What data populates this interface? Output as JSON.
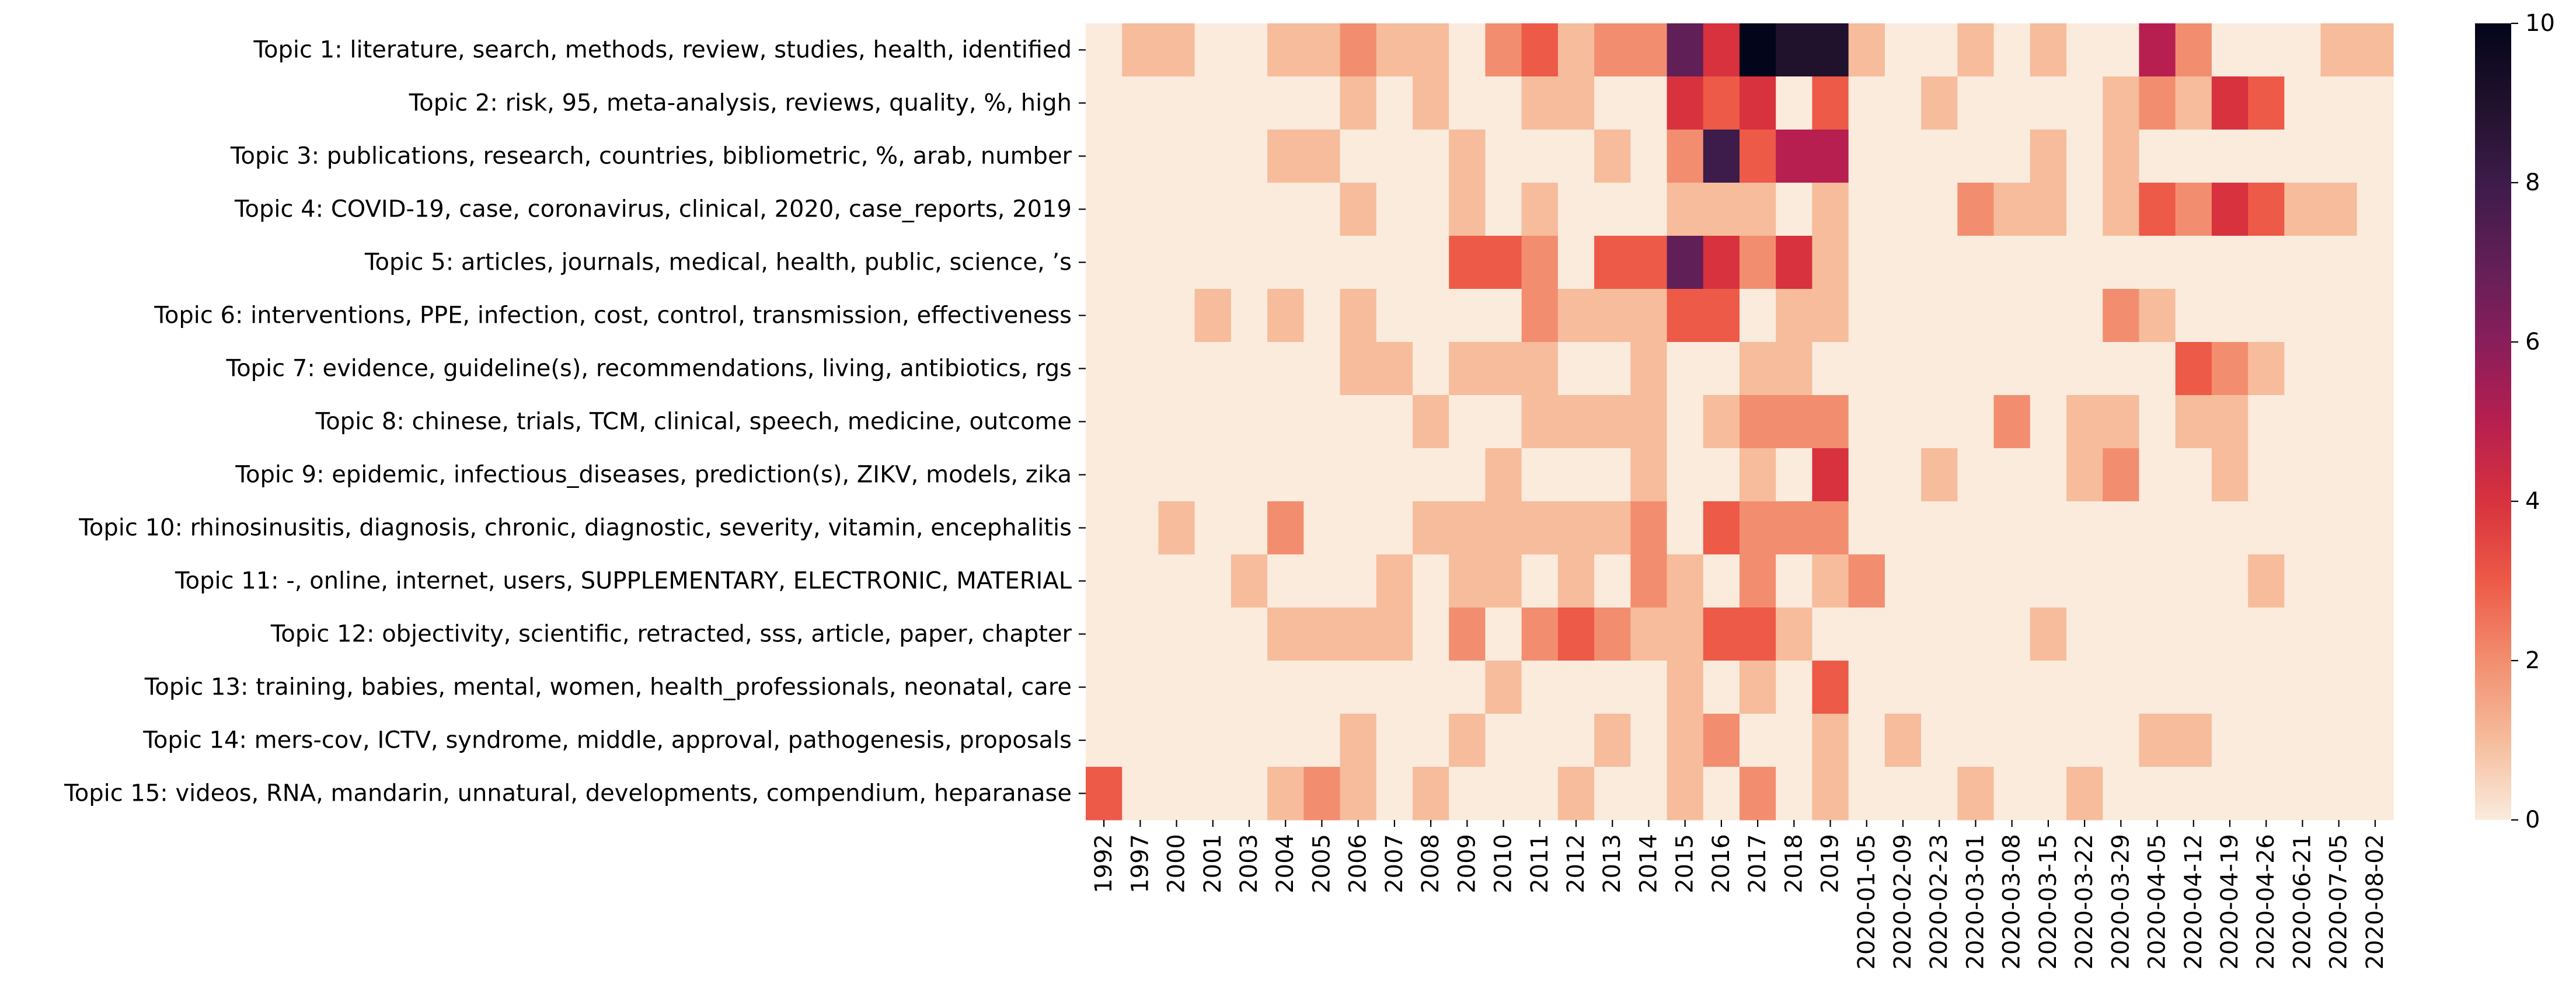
{
  "chart_data": {
    "type": "heatmap",
    "rows": [
      "Topic 1: literature, search, methods, review, studies, health, identified",
      "Topic 2: risk, 95, meta-analysis, reviews, quality, %, high",
      "Topic 3: publications, research, countries, bibliometric, %, arab, number",
      "Topic 4: COVID-19, case, coronavirus, clinical, 2020, case_reports, 2019",
      "Topic 5: articles, journals, medical, health, public, science, ’s",
      "Topic 6: interventions, PPE, infection, cost, control, transmission, effectiveness",
      "Topic 7: evidence, guideline(s), recommendations, living, antibiotics, rgs",
      "Topic 8: chinese, trials, TCM, clinical, speech, medicine, outcome",
      "Topic 9: epidemic, infectious_diseases, prediction(s), ZIKV, models, zika",
      "Topic 10: rhinosinusitis, diagnosis, chronic, diagnostic, severity, vitamin, encephalitis",
      "Topic 11: -, online, internet, users, SUPPLEMENTARY, ELECTRONIC, MATERIAL",
      "Topic 12: objectivity, scientific, retracted, sss, article, paper, chapter",
      "Topic 13: training, babies, mental, women, health_professionals, neonatal, care",
      "Topic 14: mers-cov, ICTV, syndrome, middle, approval, pathogenesis, proposals",
      "Topic 15: videos, RNA, mandarin, unnatural, developments, compendium, heparanase"
    ],
    "columns": [
      "1992",
      "1997",
      "2000",
      "2001",
      "2003",
      "2004",
      "2005",
      "2006",
      "2007",
      "2008",
      "2009",
      "2010",
      "2011",
      "2012",
      "2013",
      "2014",
      "2015",
      "2016",
      "2017",
      "2018",
      "2019",
      "2020-01-05",
      "2020-02-09",
      "2020-02-23",
      "2020-03-01",
      "2020-03-08",
      "2020-03-15",
      "2020-03-22",
      "2020-03-29",
      "2020-04-05",
      "2020-04-12",
      "2020-04-19",
      "2020-04-26",
      "2020-06-21",
      "2020-07-05",
      "2020-08-02"
    ],
    "values": [
      [
        0,
        1,
        1,
        0,
        0,
        1,
        1,
        2,
        1,
        1,
        0,
        2,
        3,
        1,
        2,
        2,
        7,
        4,
        10,
        9,
        9,
        1,
        0,
        0,
        1,
        0,
        1,
        0,
        0,
        5,
        2,
        0,
        0,
        0,
        1,
        1
      ],
      [
        0,
        0,
        0,
        0,
        0,
        0,
        0,
        1,
        0,
        1,
        0,
        0,
        1,
        1,
        0,
        0,
        4,
        3,
        4,
        0,
        3,
        0,
        0,
        1,
        0,
        0,
        0,
        0,
        1,
        2,
        1,
        4,
        3,
        0,
        0,
        0
      ],
      [
        0,
        0,
        0,
        0,
        0,
        1,
        1,
        0,
        0,
        0,
        1,
        0,
        0,
        0,
        1,
        0,
        2,
        8,
        3,
        5,
        5,
        0,
        0,
        0,
        0,
        0,
        1,
        0,
        1,
        0,
        0,
        0,
        0,
        0,
        0,
        0
      ],
      [
        0,
        0,
        0,
        0,
        0,
        0,
        0,
        1,
        0,
        0,
        1,
        0,
        1,
        0,
        0,
        0,
        1,
        1,
        1,
        0,
        1,
        0,
        0,
        0,
        2,
        1,
        1,
        0,
        1,
        3,
        2,
        4,
        3,
        1,
        1,
        0
      ],
      [
        0,
        0,
        0,
        0,
        0,
        0,
        0,
        0,
        0,
        0,
        3,
        3,
        2,
        0,
        3,
        3,
        7,
        4,
        2,
        4,
        1,
        0,
        0,
        0,
        0,
        0,
        0,
        0,
        0,
        0,
        0,
        0,
        0,
        0,
        0,
        0
      ],
      [
        0,
        0,
        0,
        1,
        0,
        1,
        0,
        1,
        0,
        0,
        0,
        0,
        2,
        1,
        1,
        1,
        3,
        3,
        0,
        1,
        1,
        0,
        0,
        0,
        0,
        0,
        0,
        0,
        2,
        1,
        0,
        0,
        0,
        0,
        0,
        0
      ],
      [
        0,
        0,
        0,
        0,
        0,
        0,
        0,
        1,
        1,
        0,
        1,
        1,
        1,
        0,
        0,
        1,
        0,
        0,
        1,
        1,
        0,
        0,
        0,
        0,
        0,
        0,
        0,
        0,
        0,
        0,
        3,
        2,
        1,
        0,
        0,
        0
      ],
      [
        0,
        0,
        0,
        0,
        0,
        0,
        0,
        0,
        0,
        1,
        0,
        0,
        1,
        1,
        1,
        1,
        0,
        1,
        2,
        2,
        2,
        0,
        0,
        0,
        0,
        2,
        0,
        1,
        1,
        0,
        1,
        1,
        0,
        0,
        0,
        0
      ],
      [
        0,
        0,
        0,
        0,
        0,
        0,
        0,
        0,
        0,
        0,
        0,
        1,
        0,
        0,
        0,
        1,
        0,
        0,
        1,
        0,
        4,
        0,
        0,
        1,
        0,
        0,
        0,
        1,
        2,
        0,
        0,
        1,
        0,
        0,
        0,
        0
      ],
      [
        0,
        0,
        1,
        0,
        0,
        2,
        0,
        0,
        0,
        1,
        1,
        1,
        1,
        1,
        1,
        2,
        0,
        3,
        2,
        2,
        2,
        0,
        0,
        0,
        0,
        0,
        0,
        0,
        0,
        0,
        0,
        0,
        0,
        0,
        0,
        0
      ],
      [
        0,
        0,
        0,
        0,
        1,
        0,
        0,
        0,
        1,
        0,
        1,
        1,
        0,
        1,
        0,
        2,
        1,
        0,
        2,
        0,
        1,
        2,
        0,
        0,
        0,
        0,
        0,
        0,
        0,
        0,
        0,
        0,
        1,
        0,
        0,
        0
      ],
      [
        0,
        0,
        0,
        0,
        0,
        1,
        1,
        1,
        1,
        0,
        2,
        0,
        2,
        3,
        2,
        1,
        1,
        3,
        3,
        1,
        0,
        0,
        0,
        0,
        0,
        0,
        1,
        0,
        0,
        0,
        0,
        0,
        0,
        0,
        0,
        0
      ],
      [
        0,
        0,
        0,
        0,
        0,
        0,
        0,
        0,
        0,
        0,
        0,
        1,
        0,
        0,
        0,
        0,
        1,
        0,
        1,
        0,
        3,
        0,
        0,
        0,
        0,
        0,
        0,
        0,
        0,
        0,
        0,
        0,
        0,
        0,
        0,
        0
      ],
      [
        0,
        0,
        0,
        0,
        0,
        0,
        0,
        1,
        0,
        0,
        1,
        0,
        0,
        0,
        1,
        0,
        1,
        2,
        0,
        0,
        1,
        0,
        1,
        0,
        0,
        0,
        0,
        0,
        0,
        1,
        1,
        0,
        0,
        0,
        0,
        0
      ],
      [
        3,
        0,
        0,
        0,
        0,
        1,
        2,
        1,
        0,
        1,
        0,
        0,
        0,
        1,
        0,
        0,
        1,
        0,
        2,
        0,
        1,
        0,
        0,
        0,
        1,
        0,
        0,
        1,
        0,
        0,
        0,
        0,
        0,
        0,
        0,
        0
      ]
    ],
    "colorbar": {
      "min": 0,
      "max": 10,
      "ticks": [
        0,
        2,
        4,
        6,
        8,
        10
      ]
    },
    "colormap": "rocket_r",
    "grid": false,
    "legend": "right"
  }
}
